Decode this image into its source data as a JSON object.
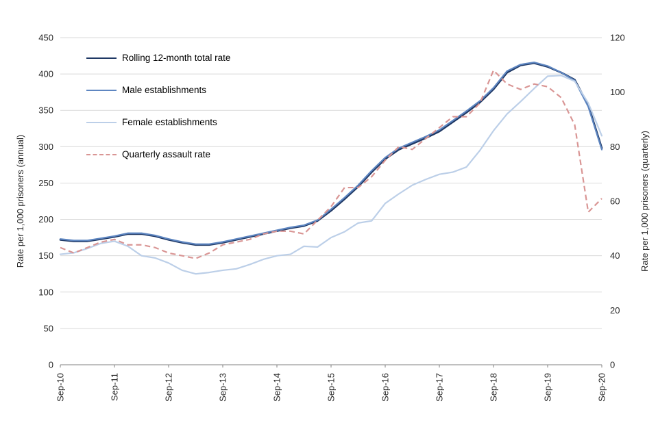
{
  "page": {
    "background": "#FFFFFF",
    "grid_color": "#D9D9D9",
    "axis_line_color": "#808080"
  },
  "chart_data": {
    "type": "line",
    "x": [
      "Sep-10",
      "Dec-10",
      "Mar-11",
      "Jun-11",
      "Sep-11",
      "Dec-11",
      "Mar-12",
      "Jun-12",
      "Sep-12",
      "Dec-12",
      "Mar-13",
      "Jun-13",
      "Sep-13",
      "Dec-13",
      "Mar-14",
      "Jun-14",
      "Sep-14",
      "Dec-14",
      "Mar-15",
      "Jun-15",
      "Sep-15",
      "Dec-15",
      "Mar-16",
      "Jun-16",
      "Sep-16",
      "Dec-16",
      "Mar-17",
      "Jun-17",
      "Sep-17",
      "Dec-17",
      "Mar-18",
      "Jun-18",
      "Sep-18",
      "Dec-18",
      "Mar-19",
      "Jun-19",
      "Sep-19",
      "Dec-19",
      "Mar-20",
      "Jun-20",
      "Sep-20"
    ],
    "x_tick_every": 4,
    "x_tick_labels": [
      "Sep-10",
      "Sep-11",
      "Sep-12",
      "Sep-13",
      "Sep-14",
      "Sep-15",
      "Sep-16",
      "Sep-17",
      "Sep-18",
      "Sep-19",
      "Sep-20"
    ],
    "left_axis": {
      "label": "Rate per 1,000 prisoners (annual)",
      "min": 0,
      "max": 450,
      "step": 50
    },
    "right_axis": {
      "label": "Rate per 1,000 prisoners (quarterly)",
      "min": 0,
      "max": 120,
      "step": 20
    },
    "grid": true,
    "legend_position": "top-left-inside",
    "series": [
      {
        "name": "Rolling 12-month total rate",
        "axis": "left",
        "color": "#1F3864",
        "style": "solid",
        "width": 2.8,
        "values": [
          172,
          170,
          170,
          173,
          176,
          180,
          180,
          177,
          172,
          168,
          165,
          165,
          168,
          172,
          176,
          180,
          184,
          188,
          191,
          198,
          212,
          228,
          245,
          265,
          283,
          296,
          304,
          312,
          321,
          334,
          347,
          361,
          379,
          402,
          412,
          415,
          410,
          402,
          392,
          357,
          298
        ]
      },
      {
        "name": "Male establishments",
        "axis": "left",
        "color": "#5E86C1",
        "style": "solid",
        "width": 2.2,
        "values": [
          173,
          171,
          171,
          174,
          177,
          181,
          181,
          178,
          173,
          169,
          166,
          166,
          169,
          173,
          177,
          181,
          185,
          189,
          192,
          199,
          214,
          230,
          247,
          267,
          285,
          298,
          306,
          314,
          323,
          336,
          349,
          363,
          381,
          404,
          413,
          416,
          411,
          402,
          391,
          355,
          296
        ]
      },
      {
        "name": "Female establishments",
        "axis": "left",
        "color": "#BCCFE8",
        "style": "solid",
        "width": 2.2,
        "values": [
          152,
          154,
          160,
          167,
          170,
          163,
          150,
          147,
          140,
          130,
          125,
          127,
          130,
          132,
          138,
          145,
          150,
          152,
          163,
          162,
          175,
          183,
          195,
          198,
          222,
          235,
          247,
          255,
          262,
          265,
          272,
          295,
          322,
          345,
          362,
          380,
          397,
          398,
          390,
          360,
          315
        ]
      },
      {
        "name": "Quarterly assault rate",
        "axis": "right",
        "color": "#D99594",
        "style": "dashed",
        "width": 2.2,
        "values": [
          43,
          41,
          43,
          45,
          46,
          44,
          44,
          43,
          41,
          40,
          39,
          41,
          44,
          45,
          46,
          48,
          49,
          49,
          48,
          53,
          58,
          65,
          65,
          69,
          75,
          80,
          79,
          83,
          87,
          91,
          91,
          96,
          108,
          103,
          101,
          103,
          102,
          98,
          88,
          56,
          61
        ]
      }
    ]
  }
}
